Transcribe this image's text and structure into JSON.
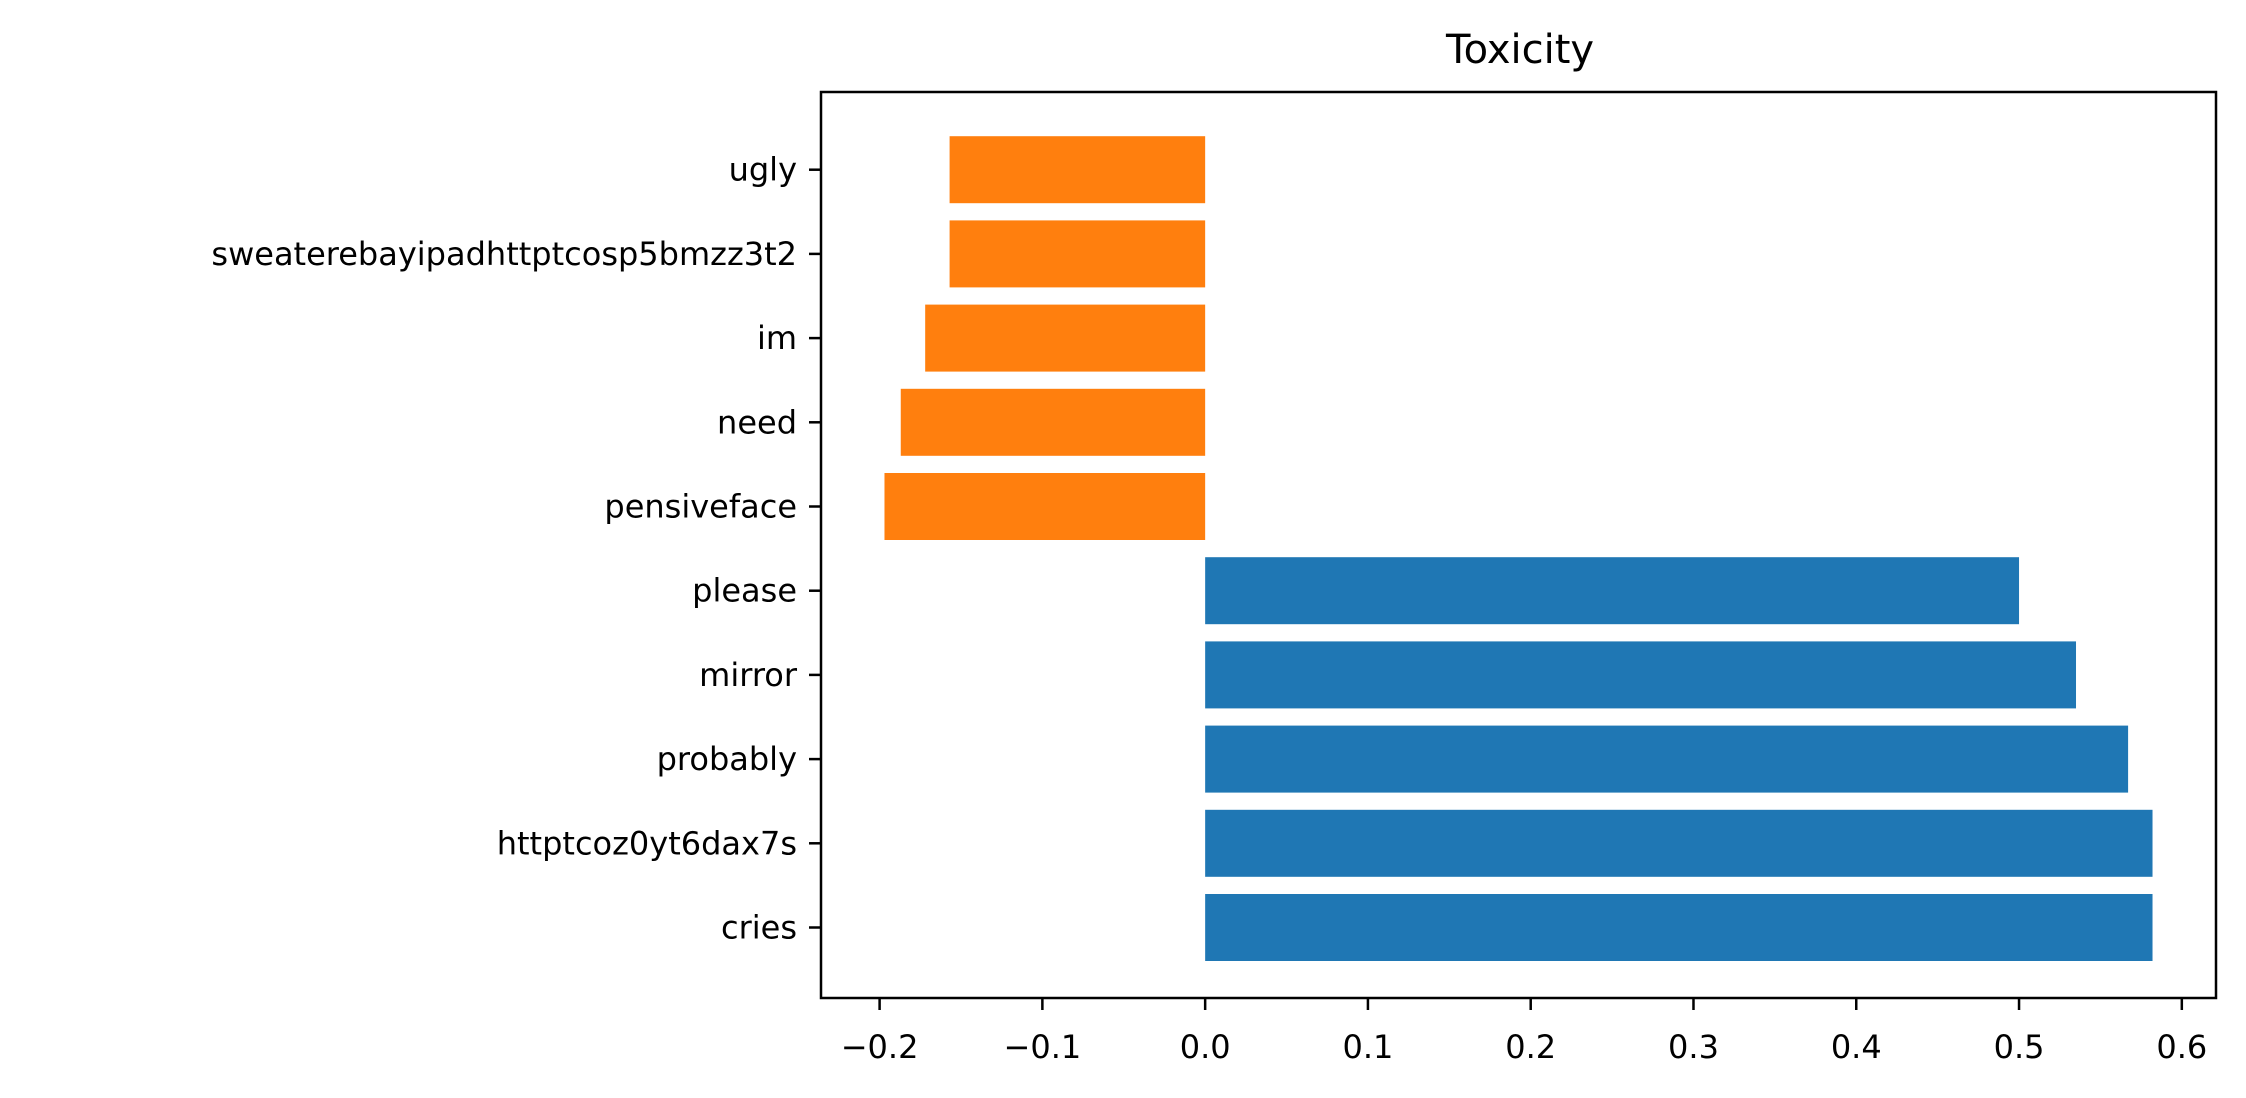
{
  "chart_data": {
    "type": "bar",
    "orientation": "horizontal",
    "title": "Toxicity",
    "xlabel": "",
    "ylabel": "",
    "categories": [
      "cries",
      "httptcoz0yt6dax7s",
      "probably",
      "mirror",
      "please",
      "pensiveface",
      "need",
      "im",
      "sweaterebayipadhttptcosp5bmzz3t2",
      "ugly"
    ],
    "values": [
      0.582,
      0.582,
      0.567,
      0.535,
      0.5,
      -0.197,
      -0.187,
      -0.172,
      -0.157,
      -0.157
    ],
    "colors": [
      "#1f77b4",
      "#1f77b4",
      "#1f77b4",
      "#1f77b4",
      "#1f77b4",
      "#ff7f0e",
      "#ff7f0e",
      "#ff7f0e",
      "#ff7f0e",
      "#ff7f0e"
    ],
    "xlim": [
      -0.236,
      0.621
    ],
    "xticks": [
      -0.2,
      -0.1,
      0.0,
      0.1,
      0.2,
      0.3,
      0.4,
      0.5,
      0.6
    ],
    "xtick_labels": [
      "−0.2",
      "−0.1",
      "0.0",
      "0.1",
      "0.2",
      "0.3",
      "0.4",
      "0.5",
      "0.6"
    ],
    "grid": false,
    "legend": "none"
  }
}
